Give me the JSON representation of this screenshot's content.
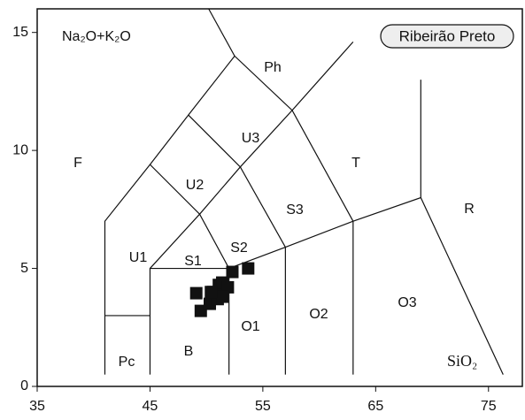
{
  "chart_data": {
    "type": "scatter",
    "y_label": "Na₂O+K₂O",
    "x_label": "SiO₂",
    "legend": "Ribeirão Preto",
    "xlim": [
      35,
      78
    ],
    "ylim": [
      0,
      16
    ],
    "xticks": [
      35,
      45,
      55,
      65,
      75
    ],
    "yticks": [
      0,
      5,
      10,
      15
    ],
    "color": "#111111",
    "x": [
      49.1,
      49.5,
      50.3,
      50.6,
      51.1,
      51.4,
      51.9,
      52.3,
      53.7,
      51.0,
      51.4,
      50.4
    ],
    "values": [
      3.95,
      3.2,
      3.5,
      4.0,
      4.3,
      4.4,
      4.2,
      4.85,
      5.0,
      3.7,
      3.8,
      4.0
    ],
    "field_labels": [
      "F",
      "Pc",
      "B",
      "O1",
      "O2",
      "O3",
      "U1",
      "S1",
      "S2",
      "U2",
      "S3",
      "U3",
      "Ph",
      "T",
      "R"
    ],
    "boundaries": [
      {
        "x": [
          41,
          41,
          45,
          48.4,
          52.5,
          57.6,
          63
        ],
        "y": [
          0.5,
          7,
          9.4,
          11.5,
          14,
          11.7,
          14.6
        ]
      },
      {
        "x": [
          41,
          45
        ],
        "y": [
          3,
          3
        ]
      },
      {
        "x": [
          45,
          45,
          52
        ],
        "y": [
          0.5,
          5,
          5
        ]
      },
      {
        "x": [
          45,
          49.4,
          52
        ],
        "y": [
          9.4,
          7.3,
          5
        ]
      },
      {
        "x": [
          48.4,
          53,
          57
        ],
        "y": [
          11.5,
          9.3,
          5.9
        ]
      },
      {
        "x": [
          45,
          49.4,
          53,
          57.6
        ],
        "y": [
          5,
          7.3,
          9.3,
          11.7
        ]
      },
      {
        "x": [
          52.5,
          50.2
        ],
        "y": [
          14,
          16
        ]
      },
      {
        "x": [
          52,
          52,
          57,
          63,
          69,
          76.3
        ],
        "y": [
          0.5,
          5,
          5.9,
          7,
          8,
          0.5
        ]
      },
      {
        "x": [
          57,
          57
        ],
        "y": [
          0.5,
          5.9
        ]
      },
      {
        "x": [
          63,
          63,
          57.6
        ],
        "y": [
          0.5,
          7,
          11.7
        ]
      },
      {
        "x": [
          69,
          69
        ],
        "y": [
          8,
          13
        ]
      }
    ]
  }
}
